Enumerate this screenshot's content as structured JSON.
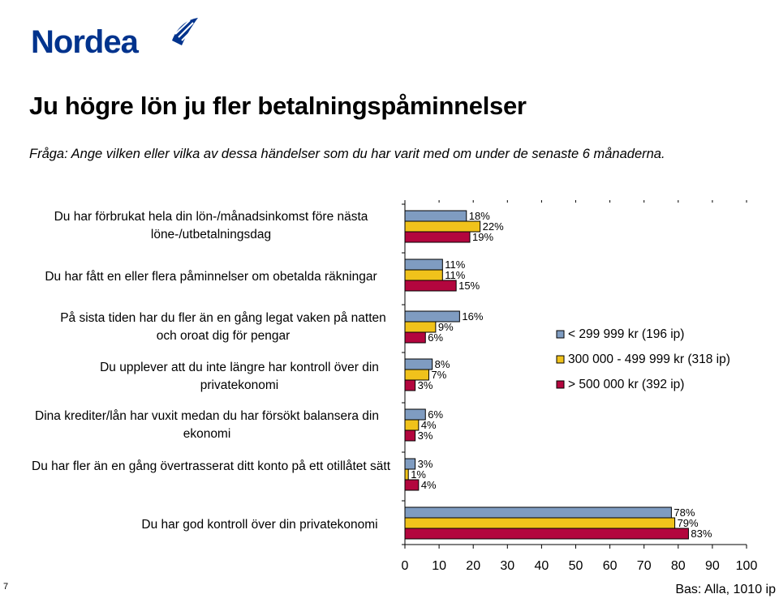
{
  "brand": {
    "name": "Nordea",
    "color": "#00338d"
  },
  "header": {
    "title": "Ju högre lön ju fler betalningspåminnelser",
    "question": "Fråga: Ange vilken eller vilka av dessa händelser som du har varit med om under de senaste 6 månaderna."
  },
  "footer": {
    "page_number": "7",
    "base_note": "Bas: Alla, 1010 ip"
  },
  "chart_data": {
    "type": "bar",
    "orientation": "horizontal",
    "title": "Ju högre lön ju fler betalningspåminnelser",
    "xlim": [
      0,
      100
    ],
    "xticks": [
      "0",
      "10",
      "20",
      "30",
      "40",
      "50",
      "60",
      "70",
      "80",
      "90",
      "100"
    ],
    "value_suffix": "%",
    "legend_position": "right",
    "categories": [
      "Du har förbrukat hela din lön-/månadsinkomst före nästa löne-/utbetalningsdag",
      "Du har fått en eller flera påminnelser om obetalda räkningar",
      "På sista tiden har du fler än en gång legat vaken på natten och oroat dig för pengar",
      "Du upplever att du inte längre har kontroll över din privatekonomi",
      "Dina krediter/lån har vuxit medan du har försökt balansera din ekonomi",
      "Du har fler än en gång övertrasserat ditt konto på ett otillåtet sätt",
      "Du har god kontroll över din privatekonomi"
    ],
    "series": [
      {
        "name": "< 299 999 kr (196 ip)",
        "color": "#7f9cc1",
        "values": [
          18,
          11,
          16,
          8,
          6,
          3,
          78
        ]
      },
      {
        "name": "300 000 - 499 999 kr (318 ip)",
        "color": "#f0c21b",
        "values": [
          22,
          11,
          9,
          7,
          4,
          1,
          79
        ]
      },
      {
        "name": "> 500 000 kr (392 ip)",
        "color": "#b3063e",
        "values": [
          19,
          15,
          6,
          3,
          3,
          4,
          83
        ]
      }
    ]
  }
}
